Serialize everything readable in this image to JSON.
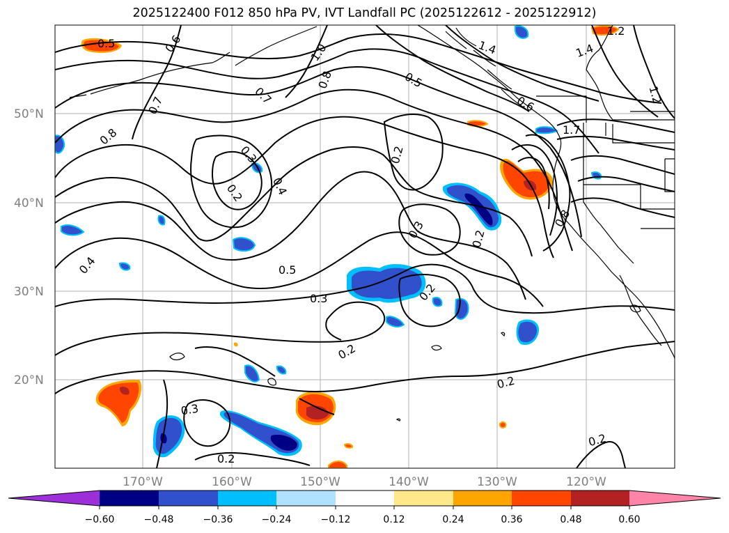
{
  "title": "2025122400 F012 850 hPa PV, IVT Landfall PC (2025122612 - 2025122912)",
  "map": {
    "lat_ticks": [
      "50°N",
      "40°N",
      "30°N",
      "20°N"
    ],
    "lon_ticks": [
      "170°W",
      "160°W",
      "150°W",
      "140°W",
      "130°W",
      "120°W"
    ],
    "contour_labels": [
      "0.5",
      "0.6",
      "0.7",
      "0.8",
      "1.0",
      "0.8",
      "0.7",
      "0.5",
      "1.4",
      "1.4",
      "1.2",
      "1.2",
      "0.6",
      "1.7",
      "0.3",
      "0.2",
      "0.4",
      "0.2",
      "0.3",
      "0.2",
      "0.4",
      "0.5",
      "0.3",
      "0.2",
      "0.2",
      "0.2",
      "0.3",
      "0.2",
      "0.2",
      "0.8"
    ]
  },
  "colorbar": {
    "ticks": [
      "−0.60",
      "−0.48",
      "−0.36",
      "−0.24",
      "−0.12",
      "0.12",
      "0.24",
      "0.36",
      "0.48",
      "0.60"
    ],
    "colors": [
      "#9b30d8",
      "#000085",
      "#3050cc",
      "#00bfff",
      "#b0e2ff",
      "#ffffff",
      "#ffe88a",
      "#ffa500",
      "#ff4500",
      "#b22222",
      "#ff85a8"
    ]
  }
}
